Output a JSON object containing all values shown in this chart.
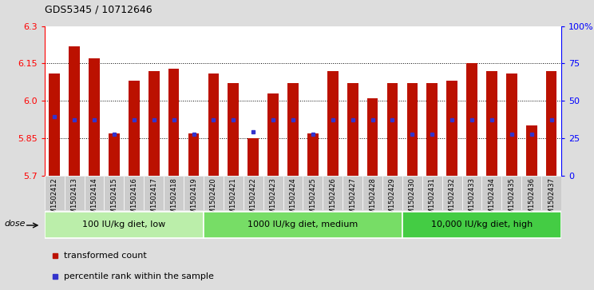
{
  "title": "GDS5345 / 10712646",
  "samples": [
    "GSM1502412",
    "GSM1502413",
    "GSM1502414",
    "GSM1502415",
    "GSM1502416",
    "GSM1502417",
    "GSM1502418",
    "GSM1502419",
    "GSM1502420",
    "GSM1502421",
    "GSM1502422",
    "GSM1502423",
    "GSM1502424",
    "GSM1502425",
    "GSM1502426",
    "GSM1502427",
    "GSM1502428",
    "GSM1502429",
    "GSM1502430",
    "GSM1502431",
    "GSM1502432",
    "GSM1502433",
    "GSM1502434",
    "GSM1502435",
    "GSM1502436",
    "GSM1502437"
  ],
  "bar_values": [
    6.11,
    6.22,
    6.17,
    5.87,
    6.08,
    6.12,
    6.13,
    5.87,
    6.11,
    6.07,
    5.85,
    6.03,
    6.07,
    5.87,
    6.12,
    6.07,
    6.01,
    6.07,
    6.07,
    6.07,
    6.08,
    6.15,
    6.12,
    6.11,
    5.9,
    6.12
  ],
  "blue_values": [
    5.935,
    5.925,
    5.925,
    5.865,
    5.925,
    5.925,
    5.925,
    5.865,
    5.925,
    5.925,
    5.875,
    5.925,
    5.925,
    5.865,
    5.925,
    5.925,
    5.925,
    5.925,
    5.865,
    5.865,
    5.925,
    5.925,
    5.925,
    5.865,
    5.865,
    5.925
  ],
  "bar_color": "#bb1100",
  "blue_color": "#3333cc",
  "ymin": 5.7,
  "ymax": 6.3,
  "yticks_left": [
    5.7,
    5.85,
    6.0,
    6.15,
    6.3
  ],
  "yticks_right": [
    0,
    25,
    50,
    75,
    100
  ],
  "yticks_right_labels": [
    "0",
    "25",
    "50",
    "75",
    "100%"
  ],
  "grid_values": [
    5.85,
    6.0,
    6.15
  ],
  "groups": [
    {
      "label": "100 IU/kg diet, low",
      "start": 0,
      "end": 8
    },
    {
      "label": "1000 IU/kg diet, medium",
      "start": 8,
      "end": 18
    },
    {
      "label": "10,000 IU/kg diet, high",
      "start": 18,
      "end": 26
    }
  ],
  "group_colors": [
    "#bbeeaa",
    "#77dd66",
    "#44cc44"
  ],
  "dose_label": "dose",
  "legend_items": [
    {
      "color": "#bb1100",
      "label": "transformed count"
    },
    {
      "color": "#3333cc",
      "label": "percentile rank within the sample"
    }
  ],
  "bg_color": "#dddddd",
  "plot_bg": "#ffffff",
  "tick_bg": "#d0d0d0"
}
